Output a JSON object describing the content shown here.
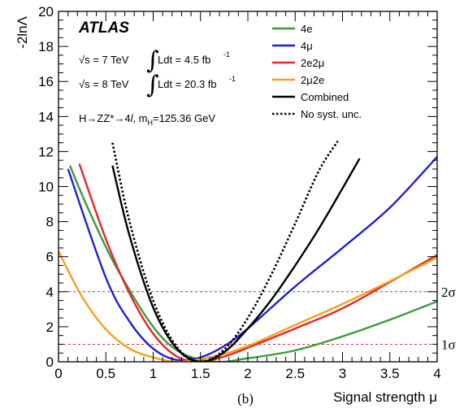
{
  "chart_data": {
    "type": "line",
    "panel_label": "(b)",
    "experiment": "ATLAS",
    "annotations": {
      "line1_sqrt": "√s = 7 TeV",
      "line1_lumi": "Ldt = 4.5 fb",
      "line1_exp": "-1",
      "line2_sqrt": "√s = 8 TeV",
      "line2_lumi": "Ldt = 20.3 fb",
      "line2_exp": "-1",
      "process_main": "H→ZZ*→4",
      "process_l": "l",
      "process_mass": ", m",
      "process_mass_sub": "H",
      "process_mass_val": "=125.36 GeV"
    },
    "xlabel": "Signal strength μ",
    "ylabel": "-2lnΛ",
    "xlim": [
      0,
      4
    ],
    "ylim": [
      0,
      20
    ],
    "x_ticks": [
      "0",
      "0.5",
      "1",
      "1.5",
      "2",
      "2.5",
      "3",
      "3.5",
      "4"
    ],
    "y_ticks": [
      "0",
      "2",
      "4",
      "6",
      "8",
      "10",
      "12",
      "14",
      "16",
      "18",
      "20"
    ],
    "reference_lines": [
      {
        "y": 1,
        "label": "1σ",
        "color": "#e8252b"
      },
      {
        "y": 4,
        "label": "2σ",
        "color": "#e8252b"
      }
    ],
    "series": [
      {
        "name": "4e",
        "color": "#3d9a3d",
        "style": "solid",
        "x": [
          0.12,
          0.3,
          0.6,
          1.0,
          1.3,
          1.66,
          2.0,
          2.5,
          3.0,
          3.5,
          4.0
        ],
        "y": [
          11.2,
          8.9,
          5.5,
          2.0,
          0.5,
          0.0,
          0.2,
          0.65,
          1.45,
          2.4,
          3.45
        ]
      },
      {
        "name": "4μ",
        "color": "#1f1fd6",
        "style": "solid",
        "x": [
          0.1,
          0.5,
          0.75,
          1.0,
          1.25,
          1.5,
          1.75,
          2.0,
          2.5,
          3.0,
          3.5,
          4.0
        ],
        "y": [
          11.0,
          4.8,
          2.3,
          0.75,
          0.1,
          0.25,
          0.9,
          1.9,
          4.3,
          6.5,
          8.8,
          11.7
        ]
      },
      {
        "name": "2e2μ",
        "color": "#e8252b",
        "style": "solid",
        "x": [
          0.22,
          0.5,
          0.75,
          1.0,
          1.25,
          1.5,
          1.75,
          2.0,
          2.5,
          3.0,
          3.5,
          4.0
        ],
        "y": [
          11.3,
          7.0,
          3.9,
          1.6,
          0.3,
          0.0,
          0.3,
          0.8,
          1.9,
          3.05,
          4.55,
          6.1
        ]
      },
      {
        "name": "2μ2e",
        "color": "#f5a01a",
        "style": "solid",
        "x": [
          0.0,
          0.25,
          0.5,
          0.75,
          1.0,
          1.25,
          1.5,
          1.75,
          2.0,
          2.5,
          3.0,
          3.5,
          4.0
        ],
        "y": [
          6.3,
          3.7,
          1.85,
          0.75,
          0.25,
          0.0,
          0.15,
          0.45,
          0.9,
          2.1,
          3.3,
          4.6,
          5.95
        ]
      },
      {
        "name": "Combined",
        "color": "#000000",
        "style": "solid",
        "x": [
          0.57,
          0.75,
          1.0,
          1.25,
          1.5,
          1.75,
          2.0,
          2.25,
          2.5,
          2.75,
          3.0,
          3.18
        ],
        "y": [
          11.2,
          7.2,
          3.1,
          0.75,
          0.0,
          0.55,
          1.9,
          3.55,
          5.5,
          7.6,
          9.9,
          11.6
        ]
      },
      {
        "name": "No syst. unc.",
        "color": "#000000",
        "style": "dotted",
        "x": [
          0.57,
          0.75,
          1.0,
          1.25,
          1.5,
          1.75,
          2.0,
          2.25,
          2.5,
          2.75,
          2.95
        ],
        "y": [
          12.5,
          8.0,
          3.5,
          0.85,
          0.0,
          0.7,
          2.5,
          5.0,
          7.9,
          10.9,
          12.6
        ]
      }
    ]
  }
}
